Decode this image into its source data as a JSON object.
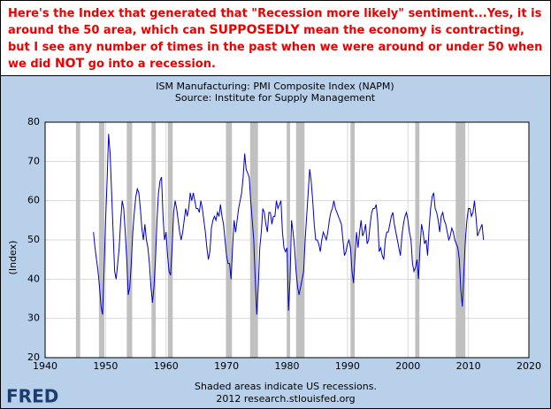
{
  "header": {
    "annotation": [
      "Here's the Index that generated that \"Recession more likely\" sentiment...Yes, it is around the 50 area, which can ",
      "SUPPOSEDLY",
      " mean the economy is contracting, but I see any number of times in the past when we were around or under 50 when we did ",
      "NOT",
      " go into a recession."
    ]
  },
  "chart_data": {
    "type": "line",
    "title": "ISM Manufacturing: PMI Composite Index (NAPM)",
    "subtitle": "Source: Institute for Supply Management",
    "y_label": "(Index)",
    "note": "Shaded areas indicate US recessions.",
    "credit": "2012 research.stlouisfed.org",
    "logo": "FRED",
    "color": "#0000cc",
    "grid": true,
    "xlim": [
      1940,
      2020
    ],
    "xticks": [
      1940,
      1950,
      1960,
      1970,
      1980,
      1990,
      2000,
      2010,
      2020
    ],
    "ylim": [
      20,
      80
    ],
    "yticks": [
      20,
      30,
      40,
      50,
      60,
      70,
      80
    ],
    "recessions": [
      [
        1945.1,
        1945.8
      ],
      [
        1948.9,
        1949.8
      ],
      [
        1953.5,
        1954.4
      ],
      [
        1957.6,
        1958.3
      ],
      [
        1960.3,
        1961.1
      ],
      [
        1969.9,
        1970.9
      ],
      [
        1973.9,
        1975.2
      ],
      [
        1980.0,
        1980.5
      ],
      [
        1981.5,
        1982.9
      ],
      [
        1990.5,
        1991.2
      ],
      [
        2001.2,
        2001.9
      ],
      [
        2007.9,
        2009.5
      ]
    ],
    "x": [
      1948,
      1948.25,
      1948.5,
      1948.75,
      1949,
      1949.25,
      1949.5,
      1949.75,
      1950,
      1950.25,
      1950.5,
      1950.75,
      1951,
      1951.25,
      1951.5,
      1951.75,
      1952,
      1952.25,
      1952.5,
      1952.75,
      1953,
      1953.25,
      1953.5,
      1953.75,
      1954,
      1954.25,
      1954.5,
      1954.75,
      1955,
      1955.25,
      1955.5,
      1955.75,
      1956,
      1956.25,
      1956.5,
      1956.75,
      1957,
      1957.25,
      1957.5,
      1957.75,
      1958,
      1958.25,
      1958.5,
      1958.75,
      1959,
      1959.25,
      1959.5,
      1959.75,
      1960,
      1960.25,
      1960.5,
      1960.75,
      1961,
      1961.25,
      1961.5,
      1961.75,
      1962,
      1962.25,
      1962.5,
      1962.75,
      1963,
      1963.25,
      1963.5,
      1963.75,
      1964,
      1964.25,
      1964.5,
      1964.75,
      1965,
      1965.25,
      1965.5,
      1965.75,
      1966,
      1966.25,
      1966.5,
      1966.75,
      1967,
      1967.25,
      1967.5,
      1967.75,
      1968,
      1968.25,
      1968.5,
      1968.75,
      1969,
      1969.25,
      1969.5,
      1969.75,
      1970,
      1970.25,
      1970.5,
      1970.75,
      1971,
      1971.25,
      1971.5,
      1971.75,
      1972,
      1972.25,
      1972.5,
      1972.75,
      1973,
      1973.25,
      1973.5,
      1973.75,
      1974,
      1974.25,
      1974.5,
      1974.75,
      1975,
      1975.25,
      1975.5,
      1975.75,
      1976,
      1976.25,
      1976.5,
      1976.75,
      1977,
      1977.25,
      1977.5,
      1977.75,
      1978,
      1978.25,
      1978.5,
      1978.75,
      1979,
      1979.25,
      1979.5,
      1979.75,
      1980,
      1980.25,
      1980.5,
      1980.75,
      1981,
      1981.25,
      1981.5,
      1981.75,
      1982,
      1982.25,
      1982.5,
      1982.75,
      1983,
      1983.25,
      1983.5,
      1983.75,
      1984,
      1984.25,
      1984.5,
      1984.75,
      1985,
      1985.25,
      1985.5,
      1985.75,
      1986,
      1986.25,
      1986.5,
      1986.75,
      1987,
      1987.25,
      1987.5,
      1987.75,
      1988,
      1988.25,
      1988.5,
      1988.75,
      1989,
      1989.25,
      1989.5,
      1989.75,
      1990,
      1990.25,
      1990.5,
      1990.75,
      1991,
      1991.25,
      1991.5,
      1991.75,
      1992,
      1992.25,
      1992.5,
      1992.75,
      1993,
      1993.25,
      1993.5,
      1993.75,
      1994,
      1994.25,
      1994.5,
      1994.75,
      1995,
      1995.25,
      1995.5,
      1995.75,
      1996,
      1996.25,
      1996.5,
      1996.75,
      1997,
      1997.25,
      1997.5,
      1997.75,
      1998,
      1998.25,
      1998.5,
      1998.75,
      1999,
      1999.25,
      1999.5,
      1999.75,
      2000,
      2000.25,
      2000.5,
      2000.75,
      2001,
      2001.25,
      2001.5,
      2001.75,
      2002,
      2002.25,
      2002.5,
      2002.75,
      2003,
      2003.25,
      2003.5,
      2003.75,
      2004,
      2004.25,
      2004.5,
      2004.75,
      2005,
      2005.25,
      2005.5,
      2005.75,
      2006,
      2006.25,
      2006.5,
      2006.75,
      2007,
      2007.25,
      2007.5,
      2007.75,
      2008,
      2008.25,
      2008.5,
      2008.75,
      2009,
      2009.25,
      2009.5,
      2009.75,
      2010,
      2010.25,
      2010.5,
      2010.75,
      2011,
      2011.25,
      2011.5,
      2011.75,
      2012,
      2012.25,
      2012.5
    ],
    "values": [
      52,
      48,
      45,
      42,
      38,
      33,
      31,
      42,
      55,
      65,
      77,
      72,
      62,
      52,
      42,
      40,
      44,
      48,
      55,
      60,
      58,
      52,
      45,
      36,
      38,
      44,
      52,
      57,
      61,
      63,
      62,
      58,
      53,
      50,
      54,
      50,
      48,
      44,
      38,
      34,
      38,
      45,
      55,
      62,
      65,
      66,
      56,
      50,
      52,
      46,
      42,
      41,
      48,
      57,
      60,
      58,
      55,
      52,
      50,
      52,
      55,
      58,
      56,
      58,
      62,
      60,
      62,
      60,
      58,
      58,
      57,
      60,
      58,
      55,
      52,
      48,
      45,
      47,
      53,
      55,
      56,
      55,
      57,
      56,
      59,
      56,
      54,
      50,
      46,
      44,
      44,
      40,
      48,
      55,
      52,
      55,
      58,
      60,
      62,
      66,
      72,
      68,
      67,
      66,
      60,
      55,
      50,
      40,
      31,
      38,
      48,
      52,
      58,
      57,
      54,
      52,
      57,
      57,
      54,
      56,
      56,
      60,
      58,
      59,
      60,
      52,
      48,
      47,
      48,
      32,
      40,
      55,
      52,
      48,
      42,
      38,
      36,
      38,
      40,
      42,
      50,
      56,
      62,
      68,
      65,
      60,
      54,
      50,
      50,
      49,
      47,
      50,
      52,
      51,
      50,
      52,
      55,
      57,
      58,
      60,
      58,
      57,
      56,
      55,
      54,
      50,
      46,
      47,
      49,
      50,
      48,
      42,
      39,
      46,
      52,
      48,
      52,
      55,
      51,
      52,
      54,
      49,
      50,
      54,
      57,
      58,
      58,
      59,
      55,
      47,
      48,
      46,
      45,
      50,
      52,
      52,
      54,
      56,
      57,
      54,
      52,
      50,
      48,
      46,
      51,
      54,
      56,
      57,
      55,
      52,
      50,
      44,
      42,
      43,
      45,
      40,
      48,
      54,
      52,
      49,
      50,
      46,
      53,
      58,
      61,
      62,
      58,
      57,
      55,
      52,
      56,
      57,
      55,
      54,
      52,
      50,
      51,
      53,
      52,
      50,
      49,
      48,
      45,
      37,
      33,
      42,
      50,
      55,
      58,
      58,
      56,
      57,
      60,
      56,
      51,
      52,
      53,
      54,
      50
    ]
  }
}
